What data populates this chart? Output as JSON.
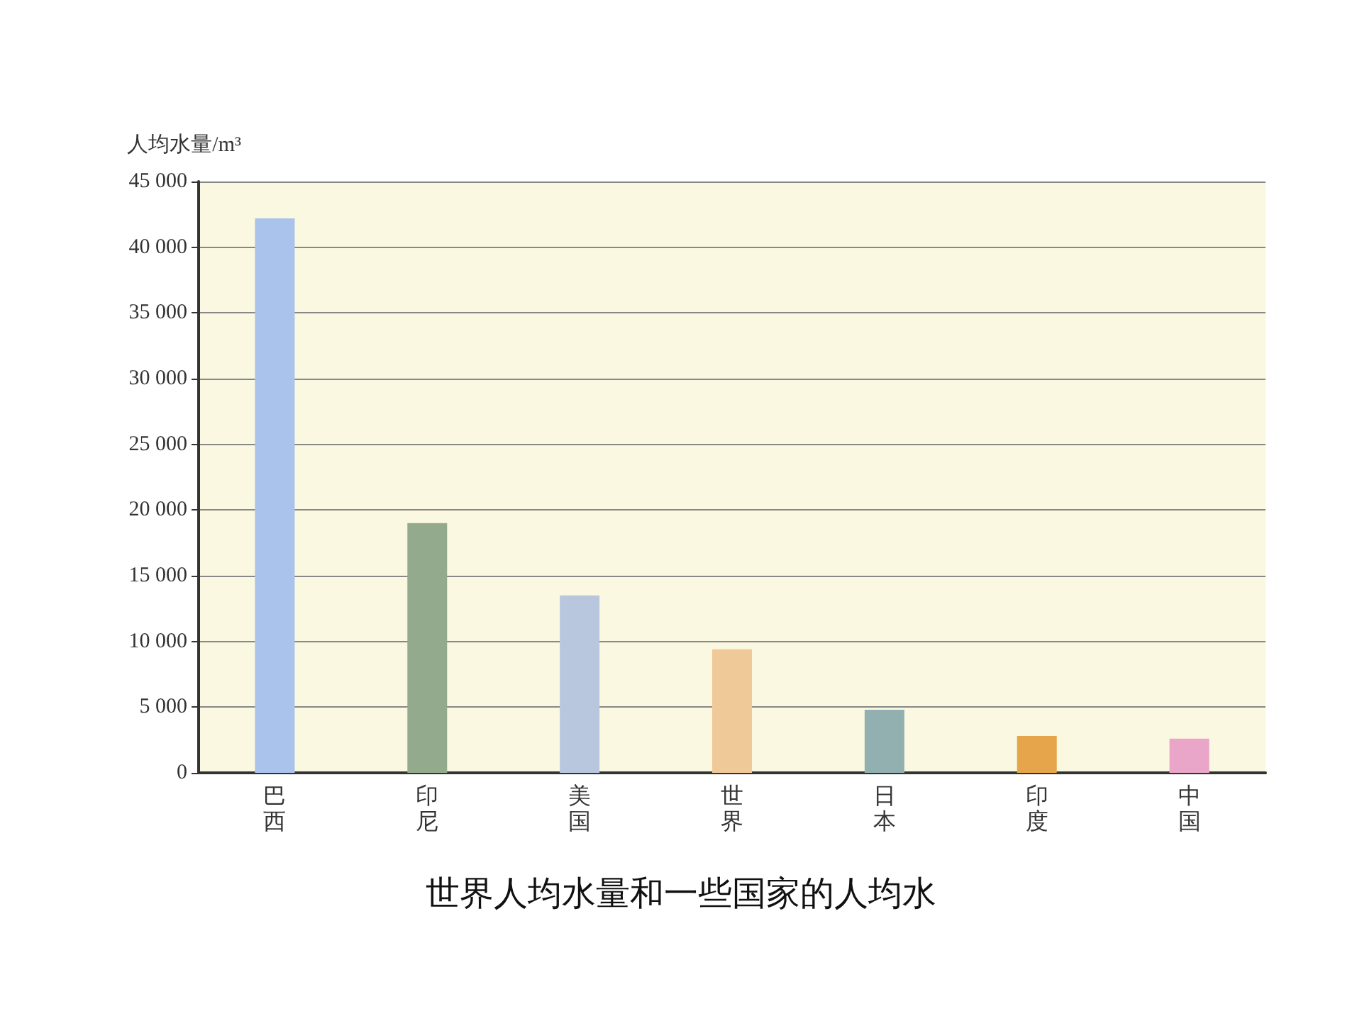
{
  "chart_data": {
    "type": "bar",
    "title": "世界人均水量和一些国家的人均水",
    "ylabel": "人均水量/m³",
    "categories": [
      "巴西",
      "印尼",
      "美国",
      "世界",
      "日本",
      "印度",
      "中国"
    ],
    "values": [
      42200,
      19000,
      13500,
      9400,
      4800,
      2800,
      2600
    ],
    "colors": [
      "#a9c3ec",
      "#93ab8c",
      "#b8c7de",
      "#f0c998",
      "#92b0b0",
      "#e6a54a",
      "#eaa6c8"
    ],
    "ylim": [
      0,
      45000
    ],
    "yticks": [
      {
        "value": 0,
        "label": "0"
      },
      {
        "value": 5000,
        "label": "5 000"
      },
      {
        "value": 10000,
        "label": "10 000"
      },
      {
        "value": 15000,
        "label": "15 000"
      },
      {
        "value": 20000,
        "label": "20 000"
      },
      {
        "value": 25000,
        "label": "25 000"
      },
      {
        "value": 30000,
        "label": "30 000"
      },
      {
        "value": 35000,
        "label": "35 000"
      },
      {
        "value": 40000,
        "label": "40 000"
      },
      {
        "value": 45000,
        "label": "45 000"
      }
    ],
    "grid": "y"
  }
}
